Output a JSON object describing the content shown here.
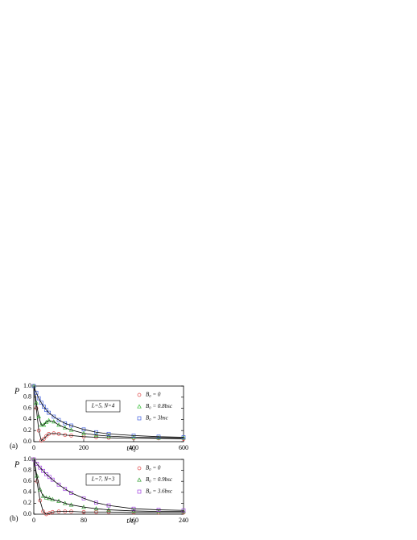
{
  "chart_data": [
    {
      "type": "line",
      "panel_label": "(a)",
      "ylabel": "P",
      "xlabel": "t/τ₀",
      "annotation": "L=5, N=4",
      "xlim": [
        0,
        600
      ],
      "xticks": [
        0,
        200,
        400,
        600
      ],
      "ylim": [
        0,
        1.0
      ],
      "yticks": [
        {
          "value": 0,
          "label": "0.0"
        },
        {
          "value": 0.2,
          "label": "0.2"
        },
        {
          "value": 0.4,
          "label": "0.4"
        },
        {
          "value": 0.6,
          "label": "0.6"
        },
        {
          "value": 0.8,
          "label": "0.8"
        },
        {
          "value": 1.0,
          "label": "1.0"
        }
      ],
      "x": [
        0,
        10,
        20,
        30,
        40,
        50,
        60,
        80,
        100,
        125,
        150,
        200,
        250,
        300,
        400,
        500,
        600
      ],
      "series": [
        {
          "name": "B₀ = 0",
          "color": "#e04848",
          "marker": "circle",
          "values": [
            1,
            0.6,
            0.2,
            0.02,
            0.05,
            0.1,
            0.14,
            0.15,
            0.14,
            0.12,
            0.11,
            0.09,
            0.08,
            0.07,
            0.06,
            0.06,
            0.05
          ]
        },
        {
          "name": "B₀ = 0.8bsc",
          "color": "#38c038",
          "marker": "triangle",
          "values": [
            1,
            0.7,
            0.45,
            0.3,
            0.3,
            0.35,
            0.38,
            0.36,
            0.3,
            0.25,
            0.21,
            0.15,
            0.12,
            0.1,
            0.08,
            0.07,
            0.07
          ]
        },
        {
          "name": "B₀ = 3bsc",
          "color": "#4060e0",
          "marker": "square",
          "values": [
            1,
            0.88,
            0.78,
            0.7,
            0.63,
            0.57,
            0.52,
            0.45,
            0.39,
            0.33,
            0.29,
            0.22,
            0.17,
            0.14,
            0.11,
            0.09,
            0.08
          ]
        }
      ]
    },
    {
      "type": "line",
      "panel_label": "(b)",
      "ylabel": "P",
      "xlabel": "t/τ₀",
      "annotation": "L=7, N=3",
      "xlim": [
        0,
        240
      ],
      "xticks": [
        0,
        80,
        160,
        240
      ],
      "ylim": [
        0,
        1.0
      ],
      "yticks": [
        {
          "value": 0,
          "label": "0.0"
        },
        {
          "value": 0.2,
          "label": "0.2"
        },
        {
          "value": 0.4,
          "label": "0.4"
        },
        {
          "value": 0.6,
          "label": "0.6"
        },
        {
          "value": 0.8,
          "label": "0.8"
        },
        {
          "value": 1.0,
          "label": "1.0"
        }
      ],
      "x": [
        0,
        5,
        10,
        15,
        20,
        25,
        30,
        40,
        50,
        60,
        80,
        100,
        120,
        160,
        200,
        240
      ],
      "series": [
        {
          "name": "B₀ = 0",
          "color": "#e04848",
          "marker": "circle",
          "values": [
            1,
            0.6,
            0.25,
            0.05,
            0,
            0.02,
            0.04,
            0.05,
            0.05,
            0.05,
            0.04,
            0.04,
            0.04,
            0.03,
            0.03,
            0.03
          ]
        },
        {
          "name": "B₀ = 0.9bsc",
          "color": "#38a038",
          "marker": "triangle",
          "values": [
            1,
            0.7,
            0.45,
            0.33,
            0.3,
            0.29,
            0.27,
            0.24,
            0.2,
            0.17,
            0.13,
            0.1,
            0.08,
            0.06,
            0.05,
            0.05
          ]
        },
        {
          "name": "B₀ = 3.6bsc",
          "color": "#a040e0",
          "marker": "square",
          "values": [
            1,
            0.92,
            0.85,
            0.79,
            0.73,
            0.68,
            0.63,
            0.54,
            0.46,
            0.39,
            0.29,
            0.21,
            0.16,
            0.1,
            0.08,
            0.07
          ]
        }
      ]
    }
  ]
}
